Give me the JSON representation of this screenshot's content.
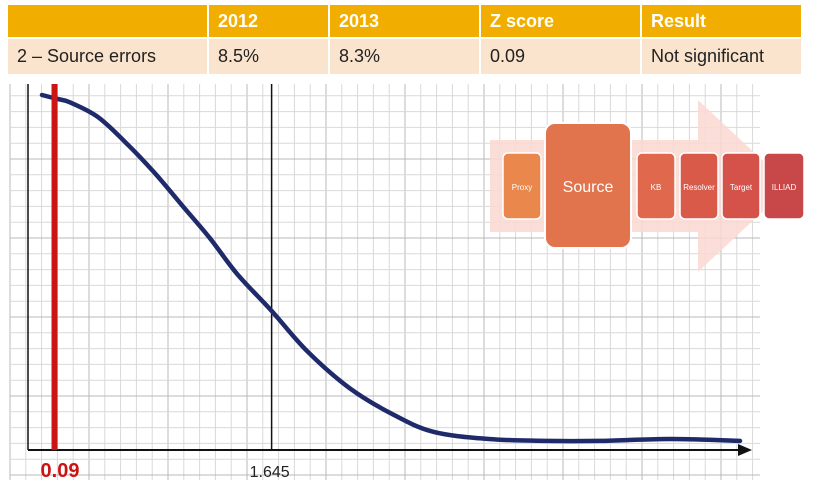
{
  "table": {
    "headers": [
      "",
      "2012",
      "2013",
      "Z score",
      "Result"
    ],
    "row": [
      "2 – Source errors",
      "8.5%",
      "8.3%",
      "0.09",
      "Not significant"
    ]
  },
  "colors": {
    "header_bg": "#f2ae00",
    "row_bg": "#fbe4cd",
    "curve": "#1f2a6b",
    "z_marker": "#cc1414",
    "grid_minor": "#d9d9d9",
    "grid_major": "#b8b8b8"
  },
  "chart_data": {
    "type": "line",
    "title": "",
    "xlabel": "",
    "ylabel": "",
    "grid": true,
    "series": [
      {
        "x": [
          0,
          0.1,
          0.2,
          0.4,
          0.6,
          0.8,
          1.0,
          1.2,
          1.4,
          1.645,
          1.9,
          2.2,
          2.5,
          2.8,
          3.2,
          3.6,
          4.0,
          4.5,
          5.0
        ],
        "values": [
          0.97,
          0.96,
          0.95,
          0.91,
          0.84,
          0.76,
          0.67,
          0.58,
          0.48,
          0.38,
          0.27,
          0.17,
          0.1,
          0.05,
          0.03,
          0.025,
          0.025,
          0.03,
          0.025
        ]
      }
    ],
    "xlim": [
      -0.1,
      5.0
    ],
    "ylim": [
      0,
      1.0
    ],
    "markers": [
      {
        "name": "z-score",
        "x": 0.09,
        "label": "0.09",
        "color": "#cc1414"
      },
      {
        "name": "critical-value",
        "x": 1.645,
        "label": "1.645",
        "color": "#111111"
      }
    ]
  },
  "diagram": {
    "steps": [
      "Proxy",
      "Source",
      "KB",
      "Resolver",
      "Target",
      "ILLIAD"
    ],
    "colors": [
      "#e9874c",
      "#e1744c",
      "#e0684c",
      "#da5a4a",
      "#d4524a",
      "#c8484a"
    ]
  }
}
